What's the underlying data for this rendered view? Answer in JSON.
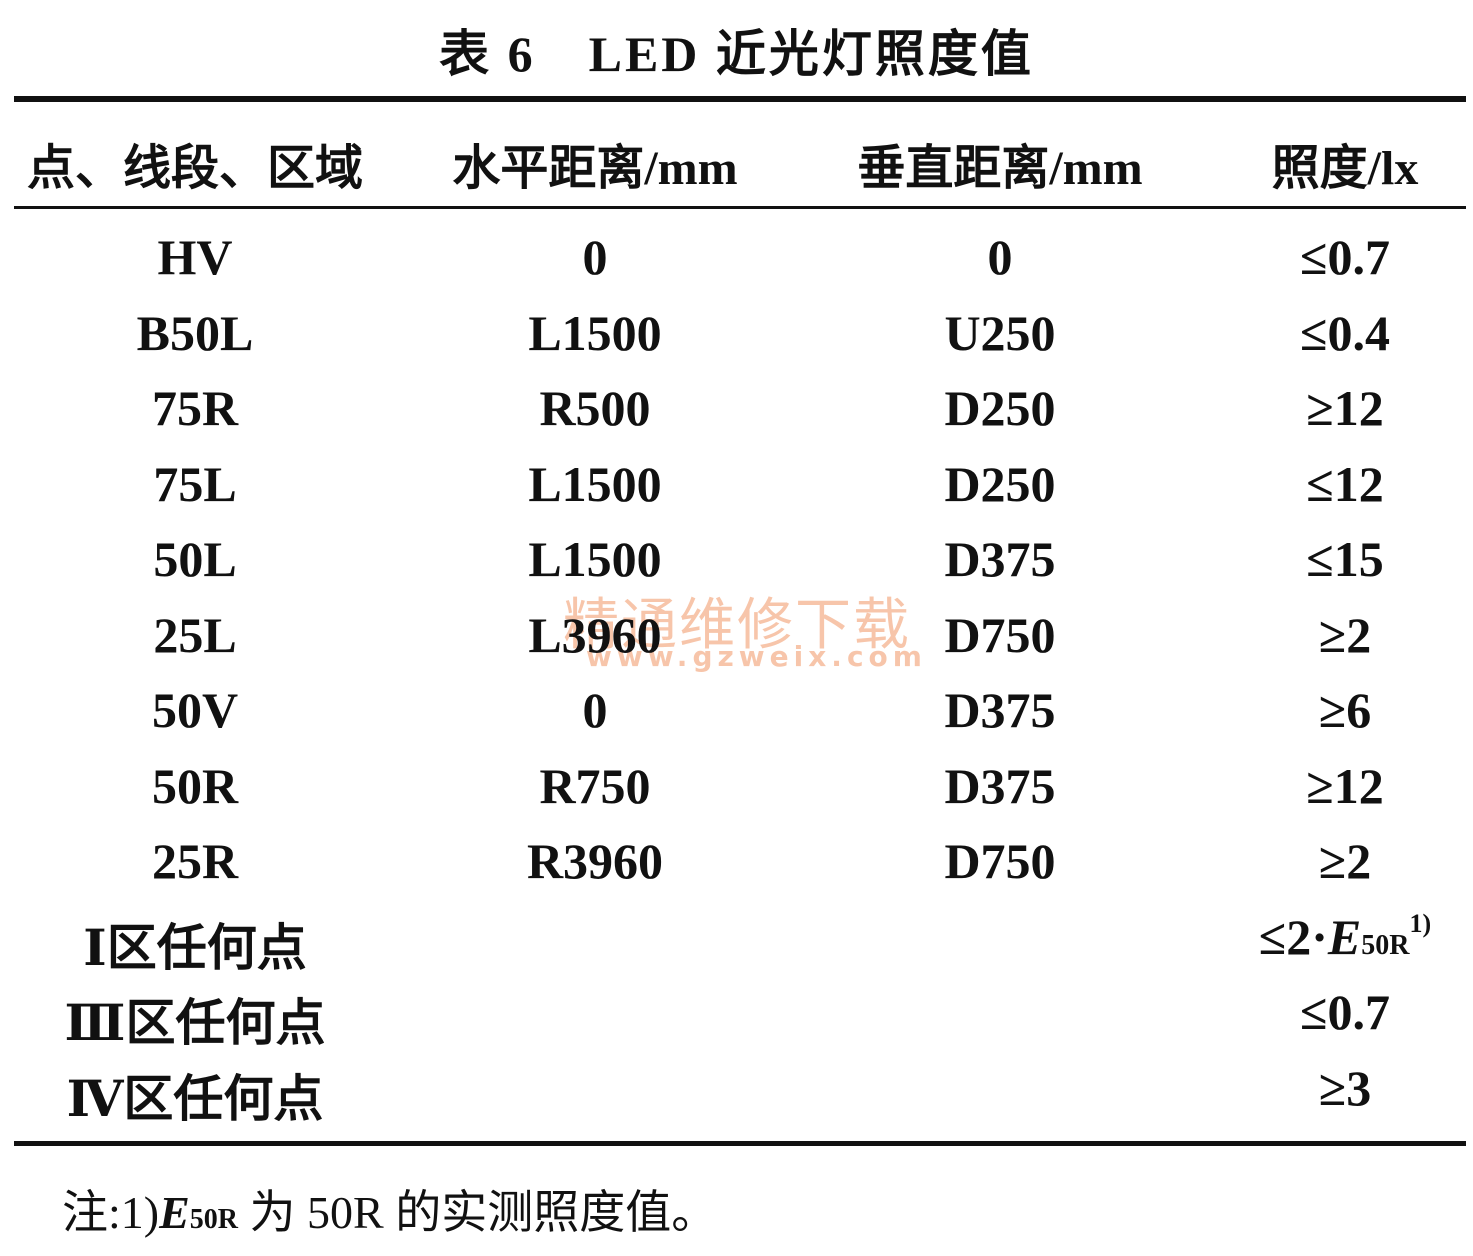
{
  "title": "表 6　LED 近光灯照度值",
  "table": {
    "headers": [
      "点、线段、区域",
      "水平距离/mm",
      "垂直距离/mm",
      "照度/lx"
    ],
    "rows": [
      {
        "label": "HV",
        "horizontal": "0",
        "vertical": "0",
        "illuminance": "≤0.7"
      },
      {
        "label": "B50L",
        "horizontal": "L1500",
        "vertical": "U250",
        "illuminance": "≤0.4"
      },
      {
        "label": "75R",
        "horizontal": "R500",
        "vertical": "D250",
        "illuminance": "≥12"
      },
      {
        "label": "75L",
        "horizontal": "L1500",
        "vertical": "D250",
        "illuminance": "≤12"
      },
      {
        "label": "50L",
        "horizontal": "L1500",
        "vertical": "D375",
        "illuminance": "≤15"
      },
      {
        "label": "25L",
        "horizontal": "L3960",
        "vertical": "D750",
        "illuminance": "≥2"
      },
      {
        "label": "50V",
        "horizontal": "0",
        "vertical": "D375",
        "illuminance": "≥6"
      },
      {
        "label": "50R",
        "horizontal": "R750",
        "vertical": "D375",
        "illuminance": "≥12"
      },
      {
        "label": "25R",
        "horizontal": "R3960",
        "vertical": "D750",
        "illuminance": "≥2"
      },
      {
        "label": "Ⅰ区任何点",
        "illuminance": {
          "prefix": "≤2·",
          "symbol": "E",
          "subscript": "50R",
          "footnote": "1)"
        }
      },
      {
        "label": "Ⅲ区任何点",
        "illuminance": "≤0.7"
      },
      {
        "label": "Ⅳ区任何点",
        "illuminance": "≥3"
      }
    ]
  },
  "note": {
    "prefix": "注:1)",
    "symbol": "E",
    "subscript": "50R",
    "text": " 为 50R 的实测照度值。"
  },
  "watermark": {
    "text": "精通维修下载",
    "url": "www.gzweix.com"
  }
}
